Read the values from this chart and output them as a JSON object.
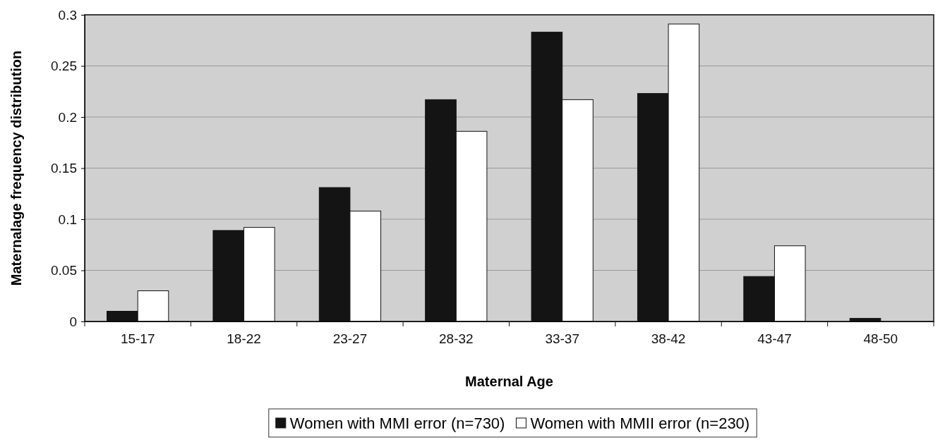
{
  "chart_data": {
    "type": "bar",
    "xlabel": "Maternal Age",
    "ylabel": "Maternalage frequency distribution",
    "categories": [
      "15-17",
      "18-22",
      "23-27",
      "28-32",
      "33-37",
      "38-42",
      "43-47",
      "48-50"
    ],
    "series": [
      {
        "name": "Women with MMI error (n=730)",
        "color": "#141414",
        "values": [
          0.01,
          0.089,
          0.131,
          0.217,
          0.283,
          0.223,
          0.044,
          0.003
        ]
      },
      {
        "name": "Women with MMII error (n=230)",
        "color": "#ffffff",
        "values": [
          0.03,
          0.092,
          0.108,
          0.186,
          0.217,
          0.291,
          0.074,
          0
        ]
      }
    ],
    "ylim": [
      0,
      0.3
    ],
    "yticks": [
      0,
      0.05,
      0.1,
      0.15,
      0.2,
      0.25,
      0.3
    ],
    "grid": "y",
    "legend": "bottom"
  }
}
